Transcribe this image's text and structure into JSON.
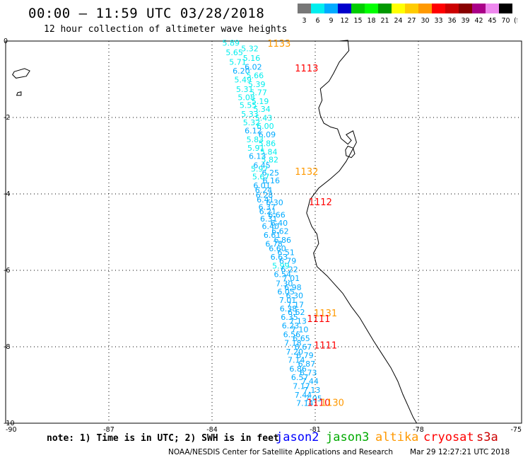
{
  "header": {
    "title": "00:00 – 11:59 UTC 03/28/2018",
    "subtitle": "12 hour collection of altimeter wave heights"
  },
  "colorbar": {
    "unit": "(ft)",
    "colors": [
      "#777777",
      "#00eeee",
      "#00aaff",
      "#0000cc",
      "#00cc00",
      "#00ff00",
      "#009900",
      "#ffff00",
      "#ffcc00",
      "#ff9900",
      "#ff0000",
      "#cc0000",
      "#880000",
      "#aa0088",
      "#ee88ee",
      "#000000"
    ],
    "labels": [
      "3",
      "6",
      "9",
      "12",
      "15",
      "18",
      "21",
      "24",
      "27",
      "30",
      "33",
      "36",
      "39",
      "42",
      "45",
      "70"
    ]
  },
  "map": {
    "lon_range": [
      -90,
      -75
    ],
    "lat_range": [
      -10,
      0
    ],
    "x_ticks": [
      "-90",
      "-87",
      "-84",
      "-81",
      "-78",
      "-75"
    ],
    "y_ticks": [
      "0",
      "-2",
      "-4",
      "-6",
      "-8",
      "-10"
    ],
    "satellite_colors": {
      "jason2": "#0000ff",
      "jason3": "#00aa00",
      "altika": "#ff9900",
      "cryosat": "#ff0000",
      "s3a": "#cc0000"
    },
    "swh_values": [
      {
        "lon": -83.45,
        "lat": -0.12,
        "v": "5.89"
      },
      {
        "lon": -82.9,
        "lat": -0.27,
        "v": "5.32"
      },
      {
        "lon": -83.35,
        "lat": -0.37,
        "v": "5.65"
      },
      {
        "lon": -82.85,
        "lat": -0.52,
        "v": "5.16"
      },
      {
        "lon": -83.25,
        "lat": -0.62,
        "v": "5.71"
      },
      {
        "lon": -82.8,
        "lat": -0.75,
        "v": "6.02"
      },
      {
        "lon": -83.15,
        "lat": -0.85,
        "v": "6.20"
      },
      {
        "lon": -82.75,
        "lat": -0.97,
        "v": "5.66"
      },
      {
        "lon": -83.1,
        "lat": -1.08,
        "v": "5.49"
      },
      {
        "lon": -82.7,
        "lat": -1.2,
        "v": "5.39"
      },
      {
        "lon": -83.05,
        "lat": -1.33,
        "v": "5.31"
      },
      {
        "lon": -82.65,
        "lat": -1.42,
        "v": "5.77"
      },
      {
        "lon": -83.0,
        "lat": -1.55,
        "v": "5.08"
      },
      {
        "lon": -82.6,
        "lat": -1.65,
        "v": "5.19"
      },
      {
        "lon": -82.95,
        "lat": -1.75,
        "v": "5.55"
      },
      {
        "lon": -82.55,
        "lat": -1.85,
        "v": "5.34"
      },
      {
        "lon": -82.9,
        "lat": -1.98,
        "v": "5.33"
      },
      {
        "lon": -82.5,
        "lat": -2.08,
        "v": "5.43"
      },
      {
        "lon": -82.85,
        "lat": -2.2,
        "v": "5.32"
      },
      {
        "lon": -82.45,
        "lat": -2.3,
        "v": "6.00"
      },
      {
        "lon": -82.8,
        "lat": -2.42,
        "v": "6.12"
      },
      {
        "lon": -82.4,
        "lat": -2.52,
        "v": "6.09"
      },
      {
        "lon": -82.75,
        "lat": -2.65,
        "v": "5.83"
      },
      {
        "lon": -82.4,
        "lat": -2.75,
        "v": "5.86"
      },
      {
        "lon": -82.72,
        "lat": -2.87,
        "v": "5.91"
      },
      {
        "lon": -82.35,
        "lat": -2.97,
        "v": "5.84"
      },
      {
        "lon": -82.68,
        "lat": -3.08,
        "v": "6.13"
      },
      {
        "lon": -82.32,
        "lat": -3.18,
        "v": "5.82"
      },
      {
        "lon": -82.55,
        "lat": -3.32,
        "v": "6.45"
      },
      {
        "lon": -82.62,
        "lat": -3.42,
        "v": "5.97"
      },
      {
        "lon": -82.3,
        "lat": -3.52,
        "v": "6.25"
      },
      {
        "lon": -82.58,
        "lat": -3.62,
        "v": "5.67"
      },
      {
        "lon": -82.28,
        "lat": -3.72,
        "v": "6.16"
      },
      {
        "lon": -82.55,
        "lat": -3.85,
        "v": "6.01"
      },
      {
        "lon": -82.5,
        "lat": -3.97,
        "v": "6.24"
      },
      {
        "lon": -82.48,
        "lat": -4.1,
        "v": "6.28"
      },
      {
        "lon": -82.45,
        "lat": -4.22,
        "v": "6.41"
      },
      {
        "lon": -82.18,
        "lat": -4.3,
        "v": "6.30"
      },
      {
        "lon": -82.4,
        "lat": -4.42,
        "v": "6.37"
      },
      {
        "lon": -82.38,
        "lat": -4.53,
        "v": "6.21"
      },
      {
        "lon": -82.12,
        "lat": -4.62,
        "v": "6.66"
      },
      {
        "lon": -82.35,
        "lat": -4.72,
        "v": "6.31"
      },
      {
        "lon": -82.05,
        "lat": -4.83,
        "v": "6.40"
      },
      {
        "lon": -82.3,
        "lat": -4.92,
        "v": "6.40"
      },
      {
        "lon": -82.02,
        "lat": -5.05,
        "v": "6.62"
      },
      {
        "lon": -82.25,
        "lat": -5.15,
        "v": "6.61"
      },
      {
        "lon": -81.95,
        "lat": -5.28,
        "v": "6.86"
      },
      {
        "lon": -82.2,
        "lat": -5.38,
        "v": "6.78"
      },
      {
        "lon": -82.1,
        "lat": -5.5,
        "v": "6.60"
      },
      {
        "lon": -81.85,
        "lat": -5.6,
        "v": "6.51"
      },
      {
        "lon": -82.05,
        "lat": -5.72,
        "v": "6.63"
      },
      {
        "lon": -81.8,
        "lat": -5.82,
        "v": "6.79"
      },
      {
        "lon": -82.0,
        "lat": -5.95,
        "v": "5.99"
      },
      {
        "lon": -81.75,
        "lat": -6.05,
        "v": "6.22"
      },
      {
        "lon": -81.95,
        "lat": -6.18,
        "v": "6.54"
      },
      {
        "lon": -81.7,
        "lat": -6.28,
        "v": "7.01"
      },
      {
        "lon": -81.9,
        "lat": -6.42,
        "v": "7.30"
      },
      {
        "lon": -81.65,
        "lat": -6.52,
        "v": "6.98"
      },
      {
        "lon": -81.85,
        "lat": -6.63,
        "v": "6.05"
      },
      {
        "lon": -81.6,
        "lat": -6.73,
        "v": "6.30"
      },
      {
        "lon": -81.8,
        "lat": -6.85,
        "v": "7.01"
      },
      {
        "lon": -81.58,
        "lat": -6.97,
        "v": "7.17"
      },
      {
        "lon": -81.78,
        "lat": -7.07,
        "v": "6.38"
      },
      {
        "lon": -81.55,
        "lat": -7.17,
        "v": "6.62"
      },
      {
        "lon": -81.75,
        "lat": -7.3,
        "v": "6.35"
      },
      {
        "lon": -81.5,
        "lat": -7.4,
        "v": "7.13"
      },
      {
        "lon": -81.72,
        "lat": -7.52,
        "v": "6.23"
      },
      {
        "lon": -81.45,
        "lat": -7.62,
        "v": "7.10"
      },
      {
        "lon": -81.68,
        "lat": -7.75,
        "v": "6.56"
      },
      {
        "lon": -81.4,
        "lat": -7.85,
        "v": "6.65"
      },
      {
        "lon": -81.65,
        "lat": -7.97,
        "v": "7.18"
      },
      {
        "lon": -81.35,
        "lat": -8.07,
        "v": "6.67"
      },
      {
        "lon": -81.6,
        "lat": -8.2,
        "v": "7.20"
      },
      {
        "lon": -81.3,
        "lat": -8.3,
        "v": "6.79"
      },
      {
        "lon": -81.55,
        "lat": -8.42,
        "v": "7.14"
      },
      {
        "lon": -81.25,
        "lat": -8.52,
        "v": "6.87"
      },
      {
        "lon": -81.5,
        "lat": -8.65,
        "v": "6.86"
      },
      {
        "lon": -81.2,
        "lat": -8.75,
        "v": "6.73"
      },
      {
        "lon": -81.45,
        "lat": -8.87,
        "v": "6.57"
      },
      {
        "lon": -81.15,
        "lat": -8.97,
        "v": "7.44"
      },
      {
        "lon": -81.4,
        "lat": -9.1,
        "v": "7.17"
      },
      {
        "lon": -81.1,
        "lat": -9.2,
        "v": "7.13"
      },
      {
        "lon": -81.35,
        "lat": -9.33,
        "v": "7.44"
      },
      {
        "lon": -81.05,
        "lat": -9.43,
        "v": "7.05"
      },
      {
        "lon": -81.3,
        "lat": -9.55,
        "v": "7.14"
      }
    ],
    "track_labels": [
      {
        "lon": -82.05,
        "lat": -0.15,
        "t": "1133",
        "sat": "altika"
      },
      {
        "lon": -81.25,
        "lat": -0.8,
        "t": "1113",
        "sat": "cryosat"
      },
      {
        "lon": -81.25,
        "lat": -3.5,
        "t": "1132",
        "sat": "altika"
      },
      {
        "lon": -80.85,
        "lat": -4.3,
        "t": "1112",
        "sat": "cryosat"
      },
      {
        "lon": -80.7,
        "lat": -7.2,
        "t": "1131",
        "sat": "altika"
      },
      {
        "lon": -80.9,
        "lat": -7.35,
        "t": "1111",
        "sat": "cryosat"
      },
      {
        "lon": -80.7,
        "lat": -8.05,
        "t": "1111",
        "sat": "cryosat"
      },
      {
        "lon": -80.9,
        "lat": -9.55,
        "t": "1110",
        "sat": "cryosat"
      },
      {
        "lon": -80.5,
        "lat": -9.55,
        "t": "1130",
        "sat": "altika"
      }
    ],
    "coastline": [
      [
        -80.3,
        0
      ],
      [
        -80.05,
        0.02
      ],
      [
        -80.02,
        -0.25
      ],
      [
        -80.3,
        -0.55
      ],
      [
        -80.47,
        -0.85
      ],
      [
        -80.6,
        -1.05
      ],
      [
        -80.85,
        -1.25
      ],
      [
        -80.8,
        -1.55
      ],
      [
        -80.9,
        -1.75
      ],
      [
        -80.85,
        -1.95
      ],
      [
        -80.75,
        -2.15
      ],
      [
        -80.55,
        -2.25
      ],
      [
        -80.35,
        -2.3
      ],
      [
        -80.25,
        -2.55
      ],
      [
        -80.05,
        -2.7
      ],
      [
        -79.95,
        -2.6
      ],
      [
        -80.1,
        -2.45
      ],
      [
        -79.9,
        -2.35
      ],
      [
        -79.8,
        -2.65
      ],
      [
        -79.95,
        -2.9
      ],
      [
        -80.1,
        -3.15
      ],
      [
        -80.3,
        -3.4
      ],
      [
        -80.55,
        -3.6
      ],
      [
        -80.9,
        -3.85
      ],
      [
        -81.15,
        -4.15
      ],
      [
        -81.25,
        -4.5
      ],
      [
        -81.1,
        -4.85
      ],
      [
        -80.95,
        -5.05
      ],
      [
        -80.9,
        -5.3
      ],
      [
        -81.05,
        -5.55
      ],
      [
        -80.95,
        -5.9
      ],
      [
        -80.65,
        -6.15
      ],
      [
        -80.2,
        -6.6
      ],
      [
        -79.95,
        -6.95
      ],
      [
        -79.7,
        -7.25
      ],
      [
        -79.5,
        -7.55
      ],
      [
        -79.3,
        -7.85
      ],
      [
        -79.05,
        -8.2
      ],
      [
        -78.8,
        -8.55
      ],
      [
        -78.6,
        -8.9
      ],
      [
        -78.45,
        -9.25
      ],
      [
        -78.3,
        -9.55
      ],
      [
        -78.15,
        -9.85
      ],
      [
        -78.05,
        -10.0
      ]
    ],
    "islands": [
      [
        [
          -89.75,
          -0.8
        ],
        [
          -89.45,
          -0.72
        ],
        [
          -89.3,
          -0.78
        ],
        [
          -89.4,
          -0.92
        ],
        [
          -89.7,
          -0.97
        ],
        [
          -89.8,
          -0.88
        ],
        [
          -89.75,
          -0.8
        ]
      ],
      [
        [
          -89.65,
          -1.35
        ],
        [
          -89.55,
          -1.33
        ],
        [
          -89.55,
          -1.42
        ],
        [
          -89.68,
          -1.42
        ],
        [
          -89.65,
          -1.35
        ]
      ]
    ],
    "puna_island": [
      [
        -80.05,
        -2.75
      ],
      [
        -79.9,
        -2.8
      ],
      [
        -79.85,
        -2.95
      ],
      [
        -79.95,
        -3.05
      ],
      [
        -80.1,
        -3.0
      ],
      [
        -80.12,
        -2.85
      ],
      [
        -80.05,
        -2.75
      ]
    ]
  },
  "footer": {
    "note": "note: 1) Time is in UTC; 2) SWH is in feet",
    "legend": [
      {
        "label": "jason2",
        "color": "#0000ff"
      },
      {
        "label": "jason3",
        "color": "#00aa00"
      },
      {
        "label": "altika",
        "color": "#ff9900"
      },
      {
        "label": "cryosat",
        "color": "#ff0000"
      },
      {
        "label": "s3a",
        "color": "#cc0000"
      }
    ],
    "credit": "NOAA/NESDIS Center for Satellite Applications and Research",
    "timestamp": "Mar 29 12:27:21 UTC 2018"
  }
}
